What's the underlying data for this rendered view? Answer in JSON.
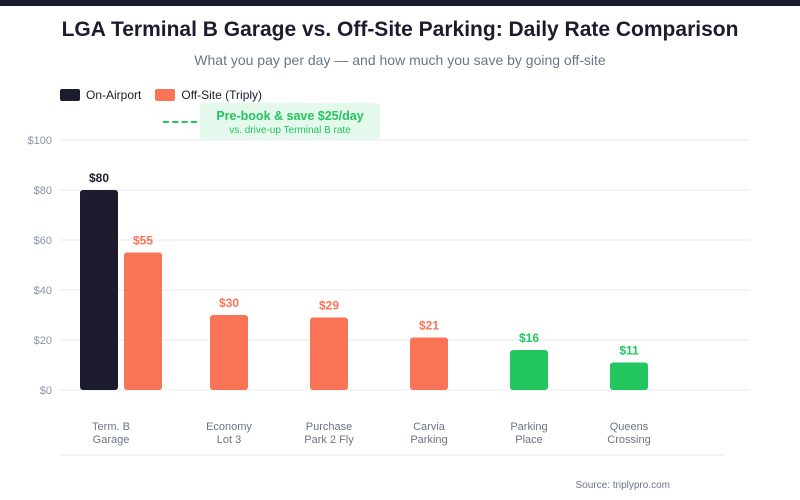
{
  "chart_data": {
    "type": "bar",
    "title": "LGA Terminal B Garage vs. Off-Site Parking: Daily Rate Comparison",
    "subtitle": "What you pay per day — and how much you save by going off-site",
    "legend": [
      {
        "name": "On-Airport",
        "color": "#1c1c2e"
      },
      {
        "name": "Off-Site (Triply)",
        "color": "#f97357"
      }
    ],
    "legend_placement": "top-left",
    "ylim": [
      0,
      100
    ],
    "yticks": [
      0,
      20,
      40,
      60,
      80,
      100
    ],
    "ytick_labels": [
      "$0",
      "$20",
      "$40",
      "$60",
      "$80",
      "$100"
    ],
    "grid": true,
    "categories": [
      {
        "line1": "Term. B",
        "line2": "Garage"
      },
      {
        "line1": "Economy",
        "line2": "Lot 3"
      },
      {
        "line1": "Purchase",
        "line2": "Park 2 Fly"
      },
      {
        "line1": "Carvia",
        "line2": "Parking"
      },
      {
        "line1": "Parking",
        "line2": "Place"
      },
      {
        "line1": "Queens",
        "line2": "Crossing"
      }
    ],
    "bars": [
      {
        "category": 0,
        "series": "On-Airport",
        "value": 80,
        "label": "$80",
        "color": "#1c1c2e"
      },
      {
        "category": 0,
        "series": "Off-Site (Triply)",
        "value": 55,
        "label": "$55",
        "color": "#f97357"
      },
      {
        "category": 1,
        "series": "Off-Site (Triply)",
        "value": 30,
        "label": "$30",
        "color": "#f97357"
      },
      {
        "category": 2,
        "series": "Off-Site (Triply)",
        "value": 29,
        "label": "$29",
        "color": "#f97357"
      },
      {
        "category": 3,
        "series": "Off-Site (Triply)",
        "value": 21,
        "label": "$21",
        "color": "#f97357"
      },
      {
        "category": 4,
        "series": "Off-Site (Triply)",
        "value": 16,
        "label": "$16",
        "color": "#22c55e"
      },
      {
        "category": 5,
        "series": "Off-Site (Triply)",
        "value": 11,
        "label": "$11",
        "color": "#22c55e"
      }
    ],
    "annotation": {
      "line1": "Pre-book & save $25/day",
      "line2": "vs. drive-up Terminal B rate",
      "color": "#22c55e"
    },
    "source": "Source: triplypro.com"
  }
}
